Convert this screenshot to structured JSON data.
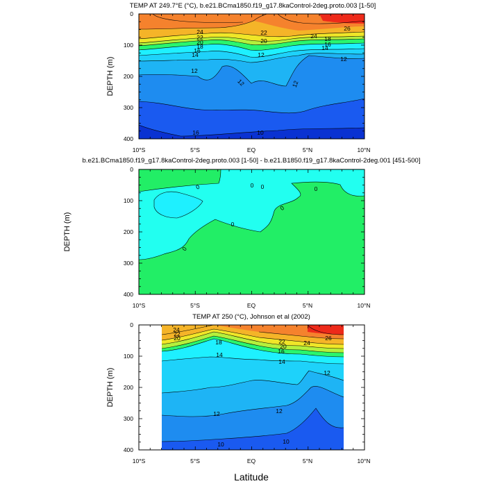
{
  "figure": {
    "xlabel": "Latitude",
    "colors": {
      "deep_blue": "#0a32d2",
      "blue": "#1a5af0",
      "dodger": "#1e8cf0",
      "light_blue": "#1eb4f5",
      "aqua": "#1ed2fa",
      "cyan": "#1ef0ff",
      "green": "#2af56e",
      "yellow_green": "#b4f03c",
      "yellow": "#f0e628",
      "amber": "#f5b428",
      "orange": "#f5822d",
      "red": "#ee2a1a",
      "zero_anom": "#22ee66",
      "pos_anom": "#22fff0"
    }
  },
  "chart_data": [
    {
      "type": "contour",
      "title": "TEMP AT 249.7°E (°C), b.e21.BCma1850.f19_g17.8kaControl-2deg.proto.003 [1-50]",
      "xlabel": "",
      "ylabel": "DEPTH (m)",
      "xlim": [
        -10,
        10
      ],
      "ylim": [
        400,
        0
      ],
      "xticks": [
        "10°S",
        "5°S",
        "EQ",
        "5°N",
        "10°N"
      ],
      "yticks": [
        "0",
        "100",
        "200",
        "300",
        "400"
      ],
      "contour_labels": [
        "24",
        "22",
        "20",
        "18",
        "16",
        "14",
        "12",
        "12",
        "12",
        "10",
        "16",
        "20",
        "22",
        "24",
        "26",
        "16",
        "18",
        "14",
        "12",
        "12"
      ]
    },
    {
      "type": "contour",
      "title": "b.e21.BCma1850.f19_g17.8kaControl-2deg.proto.003 [1-50] - b.e21.B1850.f19_g17.8kaControl-2deg.001 [451-500]",
      "xlabel": "",
      "ylabel": "DEPTH (m)",
      "xlim": [
        -10,
        10
      ],
      "ylim": [
        400,
        0
      ],
      "xticks": [
        "10°S",
        "5°S",
        "EQ",
        "5°N",
        "10°N"
      ],
      "yticks": [
        "0",
        "100",
        "200",
        "300",
        "400"
      ],
      "contour_labels": [
        "0",
        "0",
        "0",
        "0",
        "0",
        "0",
        "0"
      ]
    },
    {
      "type": "contour",
      "title": "TEMP AT 250 (°C), Johnson et al (2002)",
      "xlabel": "",
      "ylabel": "DEPTH (m)",
      "xlim": [
        -10,
        10
      ],
      "ylim": [
        400,
        0
      ],
      "xticks": [
        "10°S",
        "5°S",
        "EQ",
        "5°N",
        "10°N"
      ],
      "yticks": [
        "0",
        "100",
        "200",
        "300",
        "400"
      ],
      "contour_labels": [
        "24",
        "22",
        "20",
        "18",
        "14",
        "14",
        "12",
        "12",
        "12",
        "10",
        "10",
        "26",
        "24",
        "22",
        "20",
        "16"
      ]
    }
  ]
}
